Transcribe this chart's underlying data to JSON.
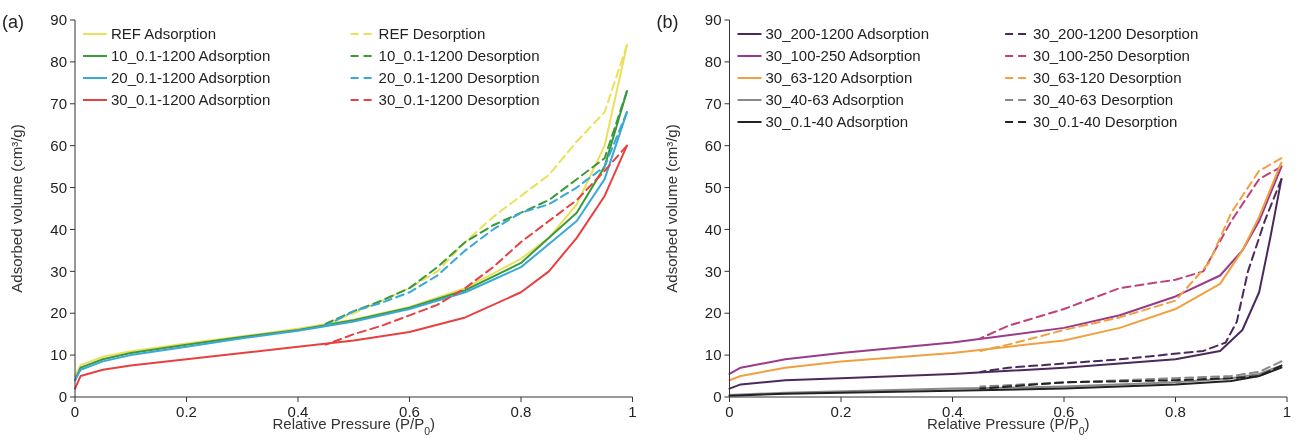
{
  "chart_data": [
    {
      "type": "line",
      "title": "(a)",
      "xlabel": "Relative Pressure (P/P$_{0}$)",
      "ylabel": "Adsorbed volume (cm³/g)",
      "xlim": [
        0,
        1
      ],
      "ylim": [
        0,
        90
      ],
      "xticks": [
        0,
        0.2,
        0.4,
        0.6,
        0.8,
        1
      ],
      "yticks": [
        0,
        10,
        20,
        30,
        40,
        50,
        60,
        70,
        80,
        90
      ],
      "legend": "top left",
      "series": [
        {
          "name": "REF Adsorption",
          "color": "#ece05a",
          "line_style": "solid",
          "x": [
            0,
            0.01,
            0.05,
            0.1,
            0.2,
            0.3,
            0.4,
            0.5,
            0.6,
            0.7,
            0.8,
            0.85,
            0.9,
            0.95,
            0.99
          ],
          "values": [
            5,
            7.6,
            9.6,
            10.9,
            12.8,
            14.5,
            16.3,
            18.5,
            21.5,
            26,
            33,
            38,
            46,
            60,
            84
          ]
        },
        {
          "name": "REF Desorption",
          "color": "#ece05a",
          "line_style": "dashed",
          "x": [
            0.99,
            0.95,
            0.9,
            0.85,
            0.8,
            0.75,
            0.7,
            0.65,
            0.6,
            0.55,
            0.5,
            0.45
          ],
          "values": [
            84,
            68,
            61,
            53,
            48,
            43,
            37,
            30,
            26,
            23,
            20,
            17.5
          ]
        },
        {
          "name": "10_0.1-1200 Adsorption",
          "color": "#3a9a3a",
          "line_style": "solid",
          "x": [
            0,
            0.01,
            0.05,
            0.1,
            0.2,
            0.3,
            0.4,
            0.5,
            0.6,
            0.7,
            0.8,
            0.9,
            0.95,
            0.99
          ],
          "values": [
            4,
            7,
            9,
            10.5,
            12.5,
            14.3,
            16,
            18.3,
            21.3,
            25.5,
            32,
            44,
            55,
            73
          ]
        },
        {
          "name": "10_0.1-1200 Desorption",
          "color": "#3a9a3a",
          "line_style": "dashed",
          "x": [
            0.99,
            0.95,
            0.9,
            0.85,
            0.8,
            0.75,
            0.7,
            0.65,
            0.6,
            0.55,
            0.5,
            0.45
          ],
          "values": [
            73,
            57,
            52,
            47,
            44,
            41,
            37,
            31,
            26,
            23,
            20.5,
            17.5
          ]
        },
        {
          "name": "20_0.1-1200 Adsorption",
          "color": "#3aa8d8",
          "line_style": "solid",
          "x": [
            0,
            0.01,
            0.05,
            0.1,
            0.2,
            0.3,
            0.4,
            0.5,
            0.6,
            0.7,
            0.8,
            0.9,
            0.95,
            0.99
          ],
          "values": [
            4,
            6.5,
            8.5,
            10,
            12,
            14,
            15.8,
            18,
            21,
            25,
            31,
            42,
            52,
            68
          ]
        },
        {
          "name": "20_0.1-1200 Desorption",
          "color": "#3aa8d8",
          "line_style": "dashed",
          "x": [
            0.99,
            0.95,
            0.9,
            0.85,
            0.8,
            0.75,
            0.7,
            0.65,
            0.6,
            0.55,
            0.5,
            0.45
          ],
          "values": [
            68,
            55,
            50,
            46,
            44,
            40,
            35,
            29,
            25,
            22.5,
            20.5,
            17
          ]
        },
        {
          "name": "30_0.1-1200 Adsorption",
          "color": "#e84040",
          "line_style": "solid",
          "x": [
            0,
            0.01,
            0.05,
            0.1,
            0.2,
            0.3,
            0.4,
            0.5,
            0.6,
            0.7,
            0.8,
            0.85,
            0.9,
            0.95,
            0.99
          ],
          "values": [
            2,
            5,
            6.5,
            7.5,
            9,
            10.5,
            12,
            13.5,
            15.5,
            19,
            25,
            30,
            38,
            48,
            60
          ]
        },
        {
          "name": "30_0.1-1200 Desorption",
          "color": "#e84040",
          "line_style": "dashed",
          "x": [
            0.99,
            0.95,
            0.9,
            0.85,
            0.8,
            0.75,
            0.7,
            0.65,
            0.6,
            0.55,
            0.5,
            0.45
          ],
          "values": [
            60,
            54,
            47,
            42,
            37,
            31,
            26,
            22,
            19.5,
            17,
            15,
            12.5
          ]
        }
      ]
    },
    {
      "type": "line",
      "title": "(b)",
      "xlabel": "Relative Pressure (P/P$_{0}$)",
      "ylabel": "Adsorbed volume (cm³/g)",
      "xlim": [
        0,
        1
      ],
      "ylim": [
        0,
        90
      ],
      "xticks": [
        0,
        0.2,
        0.4,
        0.6,
        0.8,
        1
      ],
      "yticks": [
        0,
        10,
        20,
        30,
        40,
        50,
        60,
        70,
        80,
        90
      ],
      "legend": "top left",
      "series": [
        {
          "name": "30_200-1200 Adsorption",
          "color": "#4a2a5a",
          "line_style": "solid",
          "x": [
            0,
            0.02,
            0.1,
            0.2,
            0.4,
            0.6,
            0.8,
            0.88,
            0.92,
            0.95,
            0.97,
            0.99
          ],
          "values": [
            2,
            3,
            4,
            4.5,
            5.5,
            7,
            9,
            11,
            16,
            25,
            38,
            52
          ]
        },
        {
          "name": "30_200-1200 Desorption",
          "color": "#4a2a5a",
          "line_style": "dashed",
          "x": [
            0.99,
            0.96,
            0.93,
            0.91,
            0.89,
            0.85,
            0.7,
            0.5,
            0.45
          ],
          "values": [
            52,
            42,
            30,
            18,
            13,
            11,
            9,
            7,
            6
          ]
        },
        {
          "name": "30_100-250 Adsorption",
          "color": "#9a3a8a",
          "line_style": "solid",
          "x": [
            0,
            0.02,
            0.1,
            0.2,
            0.4,
            0.6,
            0.7,
            0.8,
            0.88,
            0.92,
            0.95,
            0.99
          ],
          "values": [
            5.5,
            7,
            9,
            10.5,
            13,
            16.5,
            19.5,
            24,
            29,
            35,
            42,
            55
          ]
        },
        {
          "name": "30_100-250 Desorption",
          "color": "#c0407a",
          "line_style": "dashed",
          "x": [
            0.99,
            0.95,
            0.9,
            0.85,
            0.8,
            0.7,
            0.6,
            0.5,
            0.45
          ],
          "values": [
            55,
            52,
            42,
            30,
            28,
            26,
            21,
            17,
            14
          ]
        },
        {
          "name": "30_63-120 Adsorption",
          "color": "#f0a040",
          "line_style": "solid",
          "x": [
            0,
            0.02,
            0.1,
            0.2,
            0.4,
            0.6,
            0.7,
            0.8,
            0.88,
            0.92,
            0.95,
            0.99
          ],
          "values": [
            4,
            5,
            7,
            8.5,
            10.5,
            13.5,
            16.5,
            21,
            27,
            35,
            43,
            56
          ]
        },
        {
          "name": "30_63-120 Desorption",
          "color": "#f0a040",
          "line_style": "dashed",
          "x": [
            0.99,
            0.95,
            0.9,
            0.86,
            0.8,
            0.7,
            0.6,
            0.5,
            0.45
          ],
          "values": [
            57,
            54,
            44,
            32,
            23,
            19,
            16,
            12.5,
            11
          ]
        },
        {
          "name": "30_40-63 Adsorption",
          "color": "#888888",
          "line_style": "solid",
          "x": [
            0,
            0.1,
            0.4,
            0.6,
            0.8,
            0.9,
            0.95,
            0.99
          ],
          "values": [
            0.5,
            1,
            2,
            2.5,
            3.5,
            4.5,
            5.5,
            7.5
          ]
        },
        {
          "name": "30_40-63 Desorption",
          "color": "#888888",
          "line_style": "dashed",
          "x": [
            0.99,
            0.95,
            0.9,
            0.8,
            0.6,
            0.45
          ],
          "values": [
            8.5,
            6,
            5,
            4.5,
            3.5,
            2.5
          ]
        },
        {
          "name": "30_0.1-40 Adsorption",
          "color": "#222222",
          "line_style": "solid",
          "x": [
            0,
            0.1,
            0.4,
            0.6,
            0.8,
            0.9,
            0.95,
            0.99
          ],
          "values": [
            0.3,
            0.8,
            1.5,
            2,
            3,
            3.8,
            5,
            7
          ]
        },
        {
          "name": "30_0.1-40 Desorption",
          "color": "#222222",
          "line_style": "dashed",
          "x": [
            0.99,
            0.95,
            0.9,
            0.8,
            0.6,
            0.45
          ],
          "values": [
            7.5,
            5,
            4.5,
            4,
            3.5,
            2
          ]
        }
      ]
    }
  ]
}
